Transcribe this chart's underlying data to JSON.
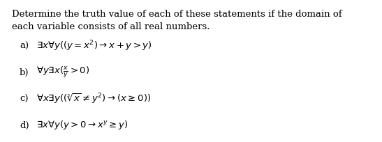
{
  "title_line1": "Determine the truth value of each of these statements if the domain of",
  "title_line2": "each variable consists of all real numbers.",
  "items": [
    {
      "label": "a)",
      "formula": "$\\exists x\\forall y((y = x^2) \\rightarrow x + y > y)$"
    },
    {
      "label": "b)",
      "formula": "$\\forall y\\exists x(\\frac{x}{y} > 0)$"
    },
    {
      "label": "c)",
      "formula": "$\\forall x\\exists y((\\sqrt[3]{x} \\neq y^2) \\rightarrow (x \\geq 0))$"
    },
    {
      "label": "d)",
      "formula": "$\\exists x\\forall y(y > 0 \\rightarrow x^y \\geq y)$"
    }
  ],
  "bg_color": "#ffffff",
  "text_color": "#000000",
  "title_fontsize": 9.5,
  "item_label_fontsize": 9.5,
  "item_formula_fontsize": 9.5,
  "figwidth": 5.47,
  "figheight": 2.04,
  "dpi": 100
}
